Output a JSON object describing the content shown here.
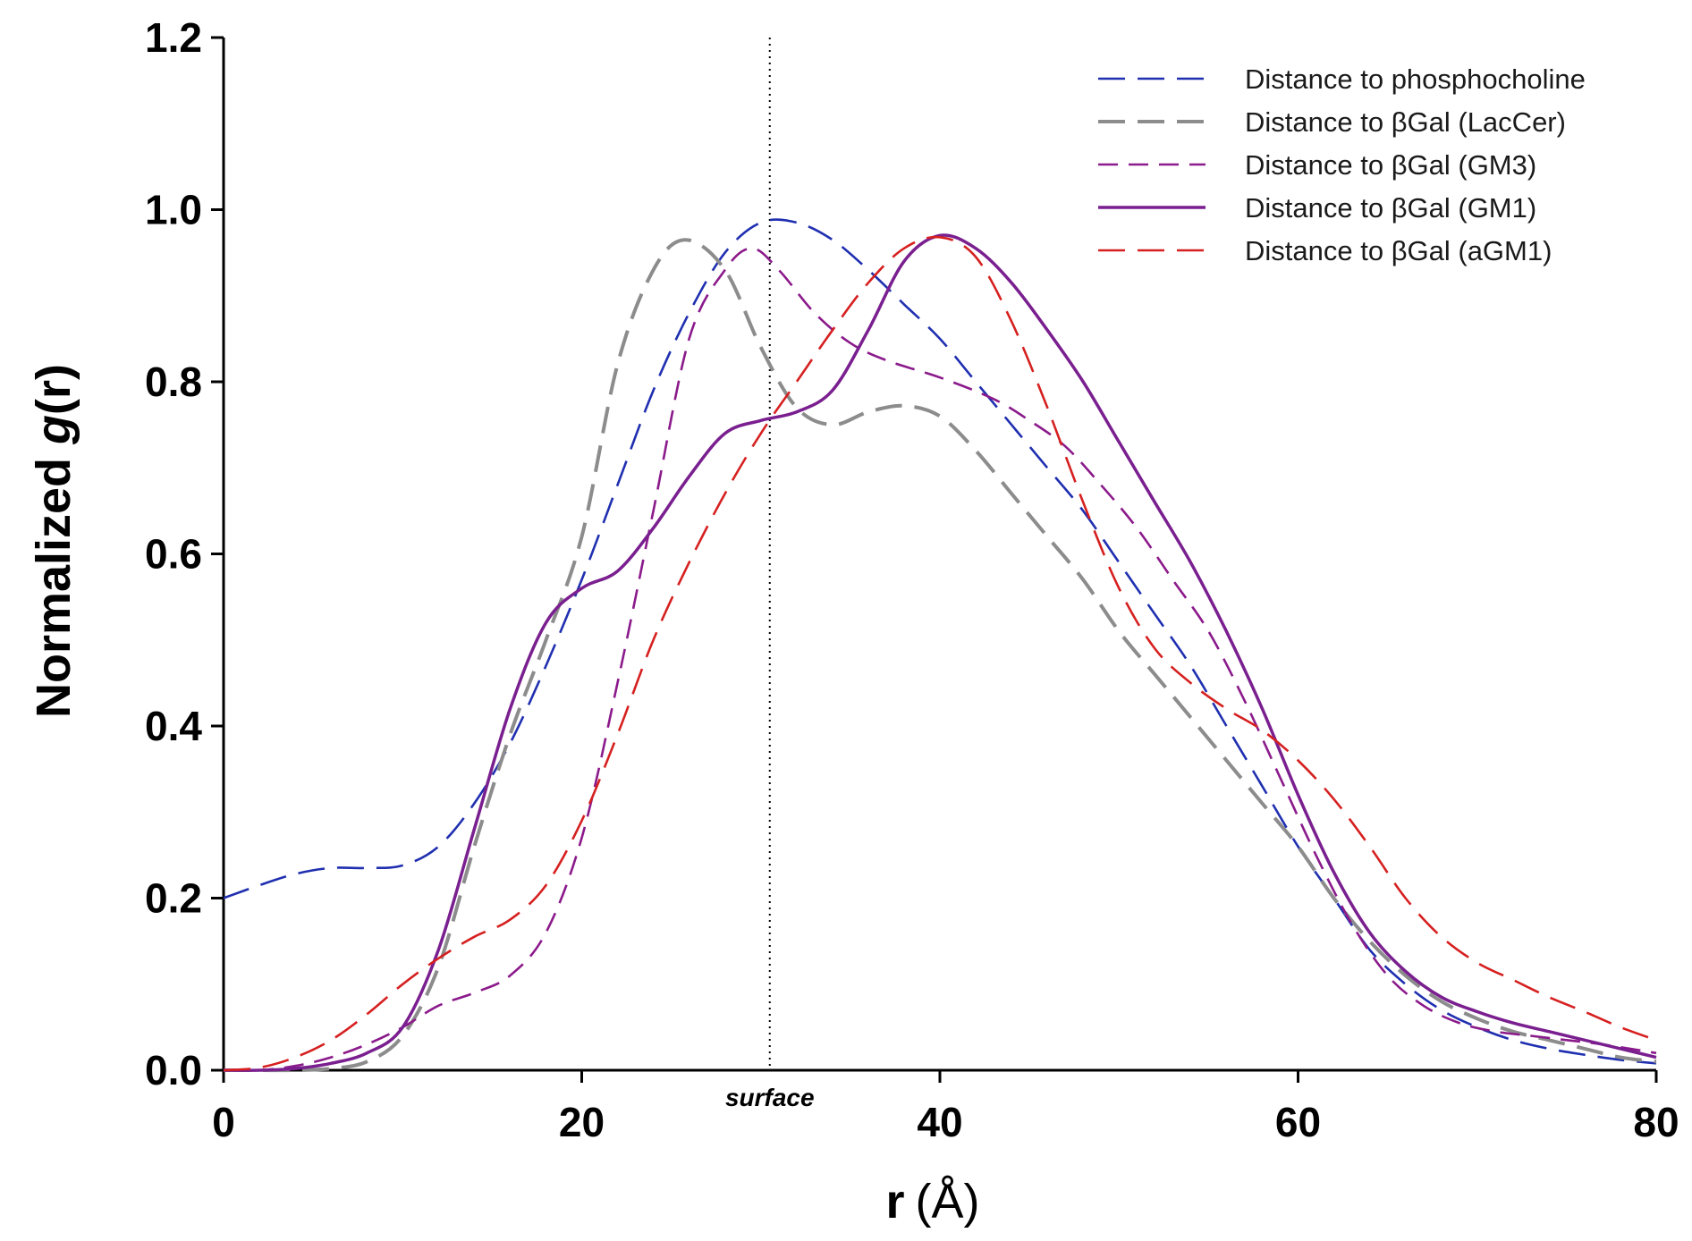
{
  "chart_data": {
    "type": "line",
    "title": "",
    "xlabel": "r",
    "xlabel_unit": "(Å)",
    "ylabel_prefix": "Normalized ",
    "ylabel_italic": "g",
    "ylabel_suffix": "(r)",
    "xlim": [
      0,
      80
    ],
    "ylim": [
      0,
      1.2
    ],
    "x_ticks": [
      0,
      20,
      40,
      60,
      80
    ],
    "x_tick_labels": [
      "0",
      "20",
      "40",
      "60",
      "80"
    ],
    "y_ticks": [
      0,
      0.2,
      0.4,
      0.6,
      0.8,
      1.0,
      1.2
    ],
    "y_tick_labels": [
      "0.0",
      "0.2",
      "0.4",
      "0.6",
      "0.8",
      "1.0",
      "1.2"
    ],
    "grid": false,
    "legend_position": "top-right",
    "annotations": [
      {
        "text": "surface",
        "x": 30.5,
        "style": "dotted vertical line"
      }
    ],
    "series": [
      {
        "name": "Distance to phosphocholine",
        "color": "#1f2fb0",
        "dash": "long-dash",
        "width": "thin",
        "x": [
          0,
          2,
          4,
          6,
          8,
          10,
          12,
          14,
          16,
          18,
          20,
          22,
          24,
          26,
          28,
          30,
          32,
          34,
          36,
          38,
          40,
          42,
          44,
          46,
          48,
          50,
          52,
          54,
          56,
          58,
          60,
          62,
          64,
          66,
          68,
          70,
          72,
          74,
          76,
          78,
          80
        ],
        "y": [
          0.2,
          0.215,
          0.228,
          0.235,
          0.235,
          0.238,
          0.26,
          0.31,
          0.38,
          0.47,
          0.57,
          0.68,
          0.79,
          0.88,
          0.95,
          0.985,
          0.985,
          0.965,
          0.93,
          0.89,
          0.85,
          0.8,
          0.75,
          0.7,
          0.65,
          0.59,
          0.53,
          0.47,
          0.4,
          0.33,
          0.26,
          0.2,
          0.14,
          0.1,
          0.07,
          0.05,
          0.035,
          0.025,
          0.018,
          0.012,
          0.008
        ]
      },
      {
        "name": "Distance to βGal (LacCer)",
        "color": "#8c8c8c",
        "dash": "long-dash",
        "width": "thick",
        "x": [
          0,
          2,
          4,
          6,
          8,
          10,
          12,
          14,
          16,
          18,
          20,
          22,
          24,
          25.8,
          28,
          30,
          32,
          34,
          36,
          38,
          40,
          42,
          44,
          46,
          48,
          50,
          52,
          54,
          56,
          58,
          60,
          62,
          64,
          66,
          68,
          70,
          72,
          74,
          76,
          78,
          80
        ],
        "y": [
          0,
          0,
          0,
          0.002,
          0.01,
          0.04,
          0.12,
          0.26,
          0.39,
          0.5,
          0.62,
          0.82,
          0.93,
          0.965,
          0.93,
          0.84,
          0.77,
          0.75,
          0.765,
          0.772,
          0.76,
          0.72,
          0.67,
          0.62,
          0.57,
          0.51,
          0.46,
          0.41,
          0.36,
          0.31,
          0.26,
          0.2,
          0.15,
          0.11,
          0.08,
          0.06,
          0.045,
          0.035,
          0.025,
          0.015,
          0.01
        ]
      },
      {
        "name": "Distance to βGal (GM3)",
        "color": "#8b1a8b",
        "dash": "medium-dash",
        "width": "thin",
        "x": [
          0,
          2,
          4,
          6,
          8,
          10,
          12,
          14,
          16,
          18,
          20,
          22,
          24,
          26,
          28,
          29.5,
          31,
          33,
          35,
          37,
          40,
          43,
          45,
          47,
          49,
          51,
          53,
          55,
          57,
          59,
          61,
          63,
          65,
          67,
          69,
          71,
          73,
          75,
          77,
          80
        ],
        "y": [
          0,
          0,
          0.005,
          0.015,
          0.03,
          0.05,
          0.075,
          0.09,
          0.11,
          0.16,
          0.27,
          0.45,
          0.65,
          0.85,
          0.93,
          0.955,
          0.93,
          0.88,
          0.845,
          0.825,
          0.805,
          0.78,
          0.755,
          0.725,
          0.68,
          0.63,
          0.57,
          0.51,
          0.43,
          0.34,
          0.25,
          0.17,
          0.11,
          0.075,
          0.055,
          0.045,
          0.04,
          0.035,
          0.03,
          0.02
        ]
      },
      {
        "name": "Distance to βGal (GM1)",
        "color": "#7a1f8f",
        "dash": "solid",
        "width": "medium",
        "x": [
          0,
          2,
          4,
          6,
          8,
          10,
          12,
          14,
          16,
          18,
          20,
          22,
          24,
          26,
          28,
          30,
          32,
          34,
          36,
          38,
          40,
          42,
          44,
          46,
          48,
          50,
          52,
          54,
          56,
          58,
          60,
          62,
          64,
          66,
          68,
          70,
          72,
          74,
          76,
          78,
          80
        ],
        "y": [
          0,
          0,
          0.002,
          0.008,
          0.02,
          0.05,
          0.14,
          0.28,
          0.42,
          0.52,
          0.56,
          0.58,
          0.63,
          0.69,
          0.74,
          0.755,
          0.765,
          0.79,
          0.86,
          0.94,
          0.97,
          0.955,
          0.915,
          0.86,
          0.8,
          0.73,
          0.66,
          0.59,
          0.51,
          0.42,
          0.32,
          0.23,
          0.16,
          0.115,
          0.085,
          0.068,
          0.055,
          0.045,
          0.035,
          0.025,
          0.015
        ]
      },
      {
        "name": "Distance to βGal (aGM1)",
        "color": "#d62020",
        "dash": "long-dash",
        "width": "thin",
        "x": [
          0,
          2,
          4,
          6,
          8,
          10,
          12,
          14,
          16,
          18,
          20,
          22,
          24,
          26,
          28,
          30,
          32,
          34,
          36,
          38,
          40,
          42,
          44,
          46,
          48,
          50,
          52,
          54,
          56,
          58,
          60,
          62,
          64,
          66,
          68,
          70,
          72,
          74,
          76,
          78,
          80
        ],
        "y": [
          0,
          0.003,
          0.015,
          0.035,
          0.065,
          0.1,
          0.13,
          0.155,
          0.175,
          0.215,
          0.29,
          0.39,
          0.5,
          0.59,
          0.67,
          0.74,
          0.8,
          0.86,
          0.915,
          0.955,
          0.968,
          0.945,
          0.87,
          0.77,
          0.66,
          0.56,
          0.49,
          0.45,
          0.42,
          0.395,
          0.36,
          0.315,
          0.26,
          0.2,
          0.155,
          0.125,
          0.105,
          0.085,
          0.068,
          0.05,
          0.035
        ]
      }
    ]
  }
}
